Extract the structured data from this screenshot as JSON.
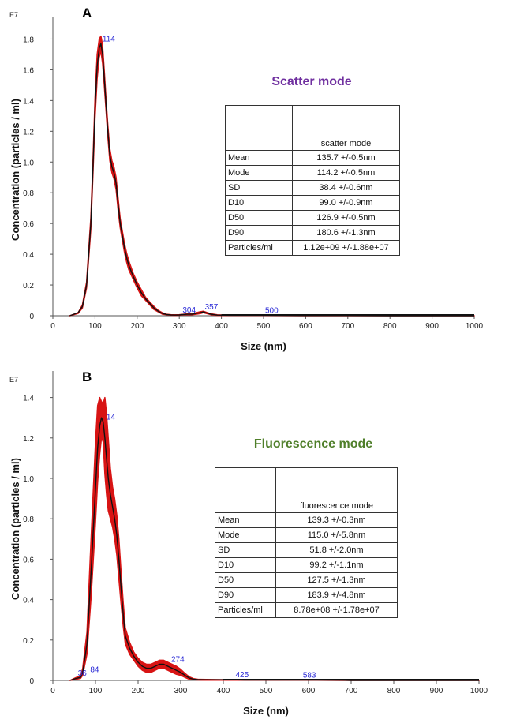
{
  "chart_data": [
    {
      "type": "line",
      "panel_label": "A",
      "title": "Scatter mode",
      "title_color": "#7030a0",
      "xlabel": "Size (nm)",
      "ylabel": "Concentration (particles / ml)",
      "y_exponent_label": "E7",
      "xlim": [
        0,
        1000
      ],
      "ylim": [
        0,
        1.9
      ],
      "xticks": [
        "0",
        "100",
        "200",
        "300",
        "400",
        "500",
        "600",
        "700",
        "800",
        "900",
        "1000"
      ],
      "yticks": [
        "0",
        "0.2",
        "0.4",
        "0.6",
        "0.8",
        "1.0",
        "1.2",
        "1.4",
        "1.6",
        "1.8"
      ],
      "grid": false,
      "series": [
        {
          "x": [
            40,
            60,
            70,
            80,
            90,
            95,
            100,
            105,
            110,
            114,
            118,
            122,
            126,
            130,
            135,
            140,
            145,
            150,
            155,
            160,
            165,
            170,
            175,
            180,
            190,
            200,
            210,
            220,
            230,
            240,
            250,
            260,
            270,
            280,
            290,
            300,
            310,
            320,
            330,
            340,
            350,
            357,
            365,
            375,
            390,
            420,
            500,
            600,
            700,
            800,
            1000
          ],
          "y": [
            0,
            0.02,
            0.06,
            0.2,
            0.6,
            0.95,
            1.35,
            1.62,
            1.74,
            1.77,
            1.7,
            1.55,
            1.38,
            1.22,
            1.05,
            0.97,
            0.93,
            0.86,
            0.72,
            0.6,
            0.52,
            0.44,
            0.38,
            0.33,
            0.26,
            0.2,
            0.15,
            0.11,
            0.08,
            0.05,
            0.03,
            0.015,
            0.008,
            0.005,
            0.004,
            0.005,
            0.008,
            0.01,
            0.01,
            0.015,
            0.02,
            0.025,
            0.018,
            0.01,
            0.004,
            0.002,
            0.002,
            0.001,
            0.001,
            0,
            0
          ],
          "y_upper": [
            0,
            0.02,
            0.07,
            0.22,
            0.64,
            1.0,
            1.42,
            1.7,
            1.8,
            1.82,
            1.76,
            1.6,
            1.42,
            1.26,
            1.09,
            1.01,
            0.97,
            0.9,
            0.76,
            0.63,
            0.55,
            0.47,
            0.41,
            0.36,
            0.28,
            0.22,
            0.17,
            0.12,
            0.09,
            0.06,
            0.035,
            0.02,
            0.01,
            0.007,
            0.006,
            0.007,
            0.01,
            0.013,
            0.014,
            0.02,
            0.026,
            0.03,
            0.022,
            0.013,
            0.006,
            0.003,
            0.003,
            0.002,
            0.001,
            0.001,
            0
          ],
          "y_lower": [
            0,
            0.015,
            0.05,
            0.18,
            0.56,
            0.9,
            1.28,
            1.54,
            1.68,
            1.72,
            1.64,
            1.5,
            1.34,
            1.18,
            1.01,
            0.93,
            0.89,
            0.82,
            0.68,
            0.57,
            0.49,
            0.41,
            0.35,
            0.3,
            0.24,
            0.18,
            0.13,
            0.1,
            0.07,
            0.04,
            0.025,
            0.01,
            0.006,
            0.003,
            0.002,
            0.003,
            0.006,
            0.007,
            0.006,
            0.01,
            0.014,
            0.02,
            0.014,
            0.007,
            0.002,
            0.001,
            0.001,
            0,
            0,
            0,
            0
          ]
        }
      ],
      "annotations": [
        {
          "text": "114",
          "x": 114,
          "y": 1.77
        },
        {
          "text": "304",
          "x": 304,
          "y": 0.005
        },
        {
          "text": "357",
          "x": 357,
          "y": 0.025
        },
        {
          "text": "500",
          "x": 500,
          "y": 0.002
        }
      ],
      "stats_table": {
        "header": "scatter mode",
        "rows": [
          {
            "label": "Mean",
            "value": "135.7 +/-0.5nm"
          },
          {
            "label": "Mode",
            "value": "114.2 +/-0.5nm"
          },
          {
            "label": "SD",
            "value": "38.4 +/-0.6nm"
          },
          {
            "label": "D10",
            "value": "99.0 +/-0.9nm"
          },
          {
            "label": "D50",
            "value": "126.9 +/-0.5nm"
          },
          {
            "label": "D90",
            "value": "180.6 +/-1.3nm"
          },
          {
            "label": "Particles/ml",
            "value": "1.12e+09 +/-1.88e+07"
          }
        ]
      }
    },
    {
      "type": "line",
      "panel_label": "B",
      "title": "Fluorescence mode",
      "title_color": "#4f7f2a",
      "xlabel": "Size (nm)",
      "ylabel": "Concentration (particles / ml)",
      "y_exponent_label": "E7",
      "xlim": [
        0,
        1000
      ],
      "ylim": [
        0,
        1.5
      ],
      "xticks": [
        "0",
        "100",
        "200",
        "300",
        "400",
        "500",
        "600",
        "700",
        "800",
        "900",
        "1000"
      ],
      "yticks": [
        "0",
        "0.2",
        "0.4",
        "0.6",
        "0.8",
        "1.0",
        "1.2",
        "1.4"
      ],
      "grid": false,
      "series": [
        {
          "x": [
            40,
            55,
            65,
            70,
            80,
            90,
            100,
            105,
            110,
            114,
            118,
            122,
            126,
            130,
            135,
            140,
            145,
            150,
            155,
            160,
            165,
            170,
            180,
            190,
            200,
            210,
            220,
            230,
            240,
            250,
            260,
            270,
            280,
            290,
            300,
            310,
            320,
            330,
            340,
            360,
            400,
            425,
            450,
            500,
            550,
            583,
            620,
            680,
            700,
            800,
            1000
          ],
          "y": [
            0,
            0.01,
            0.015,
            0.04,
            0.18,
            0.55,
            0.95,
            1.15,
            1.26,
            1.3,
            1.28,
            1.2,
            1.1,
            1.0,
            0.92,
            0.86,
            0.8,
            0.72,
            0.6,
            0.46,
            0.33,
            0.22,
            0.16,
            0.12,
            0.09,
            0.07,
            0.06,
            0.06,
            0.07,
            0.08,
            0.08,
            0.07,
            0.06,
            0.05,
            0.04,
            0.025,
            0.012,
            0.006,
            0.004,
            0.003,
            0.003,
            0.003,
            0.002,
            0.002,
            0.002,
            0.002,
            0.002,
            0.001,
            0,
            0,
            0
          ],
          "y_upper": [
            0,
            0.015,
            0.02,
            0.06,
            0.24,
            0.72,
            1.18,
            1.36,
            1.4,
            1.38,
            1.37,
            1.4,
            1.32,
            1.2,
            1.05,
            0.96,
            0.9,
            0.82,
            0.7,
            0.54,
            0.39,
            0.26,
            0.19,
            0.14,
            0.11,
            0.09,
            0.08,
            0.08,
            0.09,
            0.1,
            0.1,
            0.09,
            0.08,
            0.07,
            0.055,
            0.035,
            0.018,
            0.009,
            0.006,
            0.005,
            0.004,
            0.004,
            0.003,
            0.003,
            0.003,
            0.003,
            0.003,
            0.002,
            0.001,
            0,
            0
          ],
          "y_lower": [
            0,
            0.005,
            0.01,
            0.025,
            0.13,
            0.42,
            0.78,
            0.98,
            1.12,
            1.2,
            1.18,
            1.02,
            0.92,
            0.84,
            0.8,
            0.76,
            0.7,
            0.62,
            0.5,
            0.38,
            0.27,
            0.18,
            0.13,
            0.1,
            0.07,
            0.05,
            0.04,
            0.04,
            0.05,
            0.06,
            0.06,
            0.05,
            0.04,
            0.03,
            0.025,
            0.015,
            0.006,
            0.003,
            0.002,
            0.001,
            0.001,
            0.001,
            0.001,
            0.001,
            0.001,
            0.001,
            0.001,
            0,
            0,
            0,
            0
          ]
        }
      ],
      "annotations": [
        {
          "text": "36",
          "x": 55,
          "y": 0.012
        },
        {
          "text": "84",
          "x": 84,
          "y": 0.03
        },
        {
          "text": "14",
          "x": 122,
          "y": 1.28
        },
        {
          "text": "274",
          "x": 274,
          "y": 0.08
        },
        {
          "text": "425",
          "x": 425,
          "y": 0.003
        },
        {
          "text": "583",
          "x": 583,
          "y": 0.002
        }
      ],
      "stats_table": {
        "header": "fluorescence mode",
        "rows": [
          {
            "label": "Mean",
            "value": "139.3 +/-0.3nm"
          },
          {
            "label": "Mode",
            "value": "115.0 +/-5.8nm"
          },
          {
            "label": "SD",
            "value": "51.8 +/-2.0nm"
          },
          {
            "label": "D10",
            "value": "99.2 +/-1.1nm"
          },
          {
            "label": "D50",
            "value": "127.5 +/-1.3nm"
          },
          {
            "label": "D90",
            "value": "183.9 +/-4.8nm"
          },
          {
            "label": "Particles/ml",
            "value": "8.78e+08 +/-1.78e+07"
          }
        ]
      }
    }
  ],
  "colors": {
    "band": "#d81414",
    "line": "#111111",
    "peak_label": "#2a2ad6"
  }
}
